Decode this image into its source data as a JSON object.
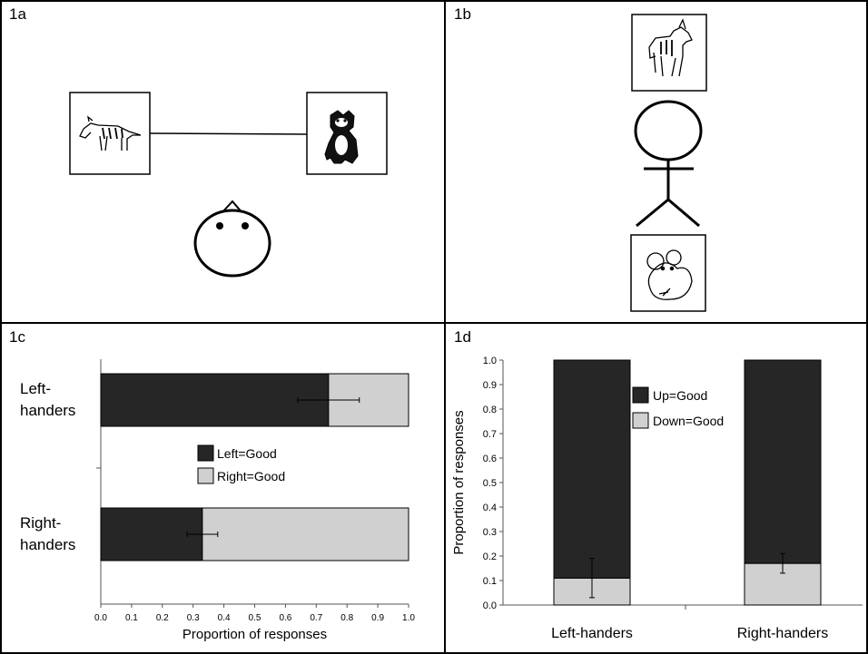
{
  "panels": {
    "a": {
      "label": "1a"
    },
    "b": {
      "label": "1b"
    },
    "c": {
      "label": "1c"
    },
    "d": {
      "label": "1d"
    }
  },
  "chart_data": [
    {
      "type": "bar",
      "orientation": "horizontal",
      "stacked": true,
      "categories": [
        "Left-\nhanders",
        "Right-\nhanders"
      ],
      "series": [
        {
          "name": "Left=Good",
          "values": [
            0.74,
            0.33
          ],
          "color": "#262626"
        },
        {
          "name": "Right=Good",
          "values": [
            0.26,
            0.67
          ],
          "color": "#d0d0d0"
        }
      ],
      "error_bars": [
        {
          "center": 0.74,
          "low": 0.64,
          "high": 0.84
        },
        {
          "center": 0.33,
          "low": 0.28,
          "high": 0.38
        }
      ],
      "xlabel": "Proportion of responses",
      "xlim": [
        0,
        1
      ],
      "xticks": [
        "0.0",
        "0.1",
        "0.2",
        "0.3",
        "0.4",
        "0.5",
        "0.6",
        "0.7",
        "0.8",
        "0.9",
        "1.0"
      ],
      "grid": false,
      "legend": "center"
    },
    {
      "type": "bar",
      "orientation": "vertical",
      "stacked": true,
      "categories": [
        "Left-handers",
        "Right-handers"
      ],
      "series": [
        {
          "name": "Down=Good",
          "values": [
            0.11,
            0.17
          ],
          "color": "#d0d0d0"
        },
        {
          "name": "Up=Good",
          "values": [
            0.89,
            0.83
          ],
          "color": "#262626"
        }
      ],
      "error_bars": [
        {
          "center": 0.11,
          "low": 0.03,
          "high": 0.19
        },
        {
          "center": 0.17,
          "low": 0.13,
          "high": 0.21
        }
      ],
      "ylabel": "Proportion of responses",
      "ylim": [
        0,
        1
      ],
      "yticks": [
        "0.0",
        "0.1",
        "0.2",
        "0.3",
        "0.4",
        "0.5",
        "0.6",
        "0.7",
        "0.8",
        "0.9",
        "1.0"
      ],
      "grid": false,
      "legend": "top-center"
    }
  ]
}
